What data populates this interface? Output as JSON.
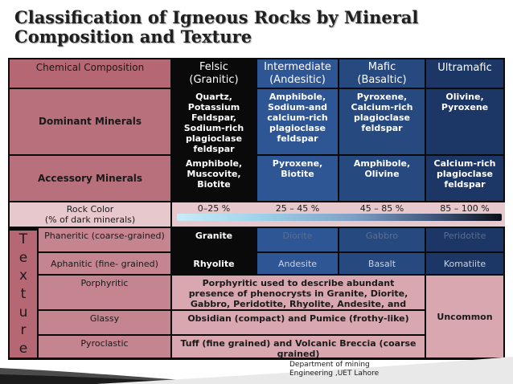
{
  "title": "Classification of Igneous Rocks by Mineral Composition and Texture",
  "header": {
    "composition": "Chemical Composition",
    "felsic": "Felsic",
    "felsic_sub": "(Granitic)",
    "intermediate": "Intermediate",
    "intermediate_sub": "(Andesitic)",
    "mafic": "Mafic",
    "mafic_sub": "(Basaltic)",
    "ultramafic": "Ultramafic"
  },
  "dominant": {
    "label": "Dominant Minerals",
    "felsic": "Quartz, Potassium Feldspar, Sodium-rich plagioclase feldspar",
    "intermediate": "Amphibole, Sodium-and calcium-rich plagioclase feldspar",
    "mafic": "Pyroxene, Calcium-rich plagioclase feldspar",
    "ultramafic": "Olivine, Pyroxene"
  },
  "accessory": {
    "label": "Accessory Minerals",
    "felsic": "Amphibole, Muscovite, Biotite",
    "intermediate": "Pyroxene, Biotite",
    "mafic": "Amphibole, Olivine",
    "ultramafic": "Calcium-rich plagioclase feldspar"
  },
  "rock_color": {
    "label": "Rock Color",
    "sublabel": "(% of dark minerals)",
    "felsic": "0–25 %",
    "intermediate": "25 – 45 %",
    "mafic": "45 – 85 %",
    "ultramafic": "85 – 100 %"
  },
  "texture_letters": [
    "T",
    "e",
    "x",
    "t",
    "u",
    "r",
    "e"
  ],
  "phaneritic": {
    "label": "Phaneritic (coarse-grained)",
    "felsic": "Granite",
    "intermediate": "Diorite",
    "mafic": "Gabbro",
    "ultramafic": "Peridotite"
  },
  "aphanitic": {
    "label": "Aphanitic (fine-  grained)",
    "felsic": "Rhyolite",
    "intermediate": "Andesite",
    "mafic": "Basalt",
    "ultramafic": "Komatiite"
  },
  "porphyritic": {
    "label": "Porphyritic",
    "text": "Porphyritic used to describe abundant presence of phenocrysts in Granite, Diorite, Gabbro, Peridotite, Rhyolite, Andesite, and Basalt"
  },
  "glassy": {
    "label": "Glassy",
    "text": "Obsidian (compact)  and  Pumice (frothy-like)"
  },
  "pyroclastic": {
    "label": "Pyroclastic",
    "text": "Tuff (fine grained) and Volcanic Breccia (coarse grained)"
  },
  "uncommon": "Uncommon",
  "footer_line1": "Department of mining",
  "footer_line2": "Engineering ,UET Lahore",
  "colors": {
    "rose": "#b56774",
    "pale": "#e6c8cd",
    "blue": "#2f5694",
    "black": "#0a0a0a"
  }
}
